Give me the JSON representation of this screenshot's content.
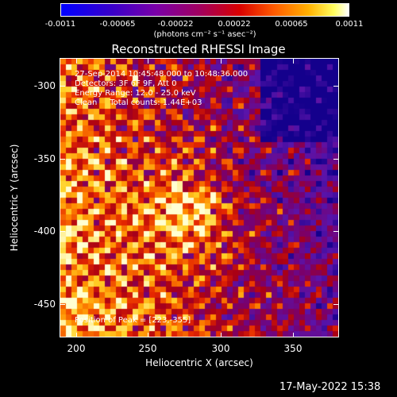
{
  "colorbar": {
    "tick_labels": [
      "-0.0011",
      "-0.00065",
      "-0.00022",
      "0.00022",
      "0.00065",
      "0.0011"
    ],
    "unit_label": "(photons cm⁻² s⁻¹ asec⁻²)"
  },
  "title": "Reconstructed RHESSI Image",
  "info": {
    "line1": "27-Sep-2014 10:45:48.000 to 10:48:36.000",
    "line2": "Detectors: 3F 6F 9F, Att 0",
    "line3": "Energy Range: 12.0 - 25.0 keV",
    "line4": "Clean     Total counts: 1.44E+03",
    "peak": "Position of Peak = [223,-355]"
  },
  "axes": {
    "xlabel": "Heliocentric X (arcsec)",
    "ylabel": "Heliocentric Y (arcsec)",
    "x_ticks": [
      "200",
      "250",
      "300",
      "350"
    ],
    "y_ticks": [
      "-300",
      "-350",
      "-400",
      "-450"
    ]
  },
  "footer": {
    "timestamp": "17-May-2022 15:38"
  },
  "colors": {
    "low": "#0000ff",
    "mid": "#a00060",
    "high": "#ffffff"
  }
}
